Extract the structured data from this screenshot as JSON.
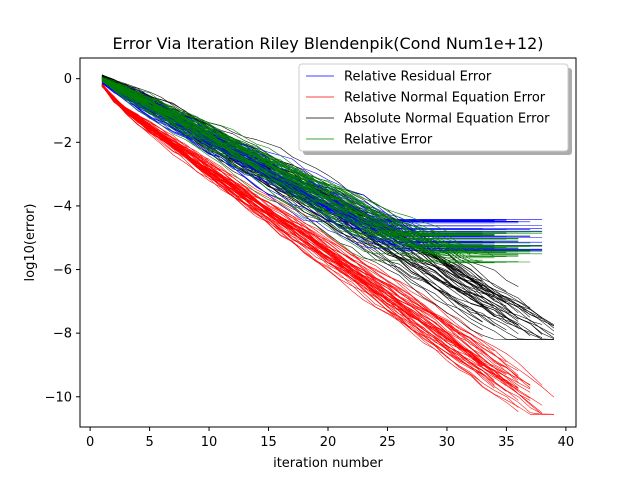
{
  "chart_data": {
    "type": "line",
    "title": "Error Via Iteration Riley Blendenpik(Cond Num1e+12)",
    "xlabel": "iteration number",
    "ylabel": "log10(error)",
    "xlim": [
      -0.85,
      40.85
    ],
    "ylim": [
      -10.95,
      0.65
    ],
    "xticks": [
      0,
      5,
      10,
      15,
      20,
      25,
      30,
      35,
      40
    ],
    "yticks": [
      0,
      -2,
      -4,
      -6,
      -8,
      -10
    ],
    "xtick_labels": [
      "0",
      "5",
      "10",
      "15",
      "20",
      "25",
      "30",
      "35",
      "40"
    ],
    "ytick_labels": [
      "0",
      "−2",
      "−4",
      "−6",
      "−8",
      "−10"
    ],
    "grid": false,
    "legend_position": "top-right",
    "runs_per_series": 50,
    "series": [
      {
        "name": "Relative Residual Error",
        "color": "#0000ff",
        "start": [
          1,
          -0.1
        ],
        "trend": "linear decrease to a plateau",
        "slope_per_iteration": -0.2,
        "plateau_range": [
          -5.4,
          -4.4
        ],
        "end_iteration_range": [
          33,
          38
        ]
      },
      {
        "name": "Relative Normal Equation Error",
        "color": "#ff0000",
        "start": [
          1,
          -0.2
        ],
        "trend": "steep initial drop then linear decrease",
        "initial_drop": [
          [
            1,
            -0.2
          ],
          [
            2,
            -0.65
          ],
          [
            3,
            -1.0
          ]
        ],
        "slope_per_iteration": -0.265,
        "end_value_range": [
          -10.45,
          -9.7
        ],
        "end_iteration_range": [
          33,
          39
        ]
      },
      {
        "name": "Absolute Normal Equation Error",
        "color": "#000000",
        "start": [
          1,
          0.05
        ],
        "trend": "linear decrease, flattening after iteration 25",
        "segments": [
          [
            1,
            0.05
          ],
          [
            25,
            -5.1
          ],
          [
            37,
            -7.9
          ]
        ],
        "end_value_range": [
          -8.2,
          -7.5
        ],
        "end_iteration_range": [
          33,
          39
        ]
      },
      {
        "name": "Relative Error",
        "color": "#008000",
        "start": [
          1,
          -0.05
        ],
        "trend": "linear decrease to a plateau",
        "slope_per_iteration": -0.2,
        "plateau_range": [
          -5.8,
          -4.8
        ],
        "end_iteration_range": [
          33,
          38
        ]
      }
    ]
  }
}
